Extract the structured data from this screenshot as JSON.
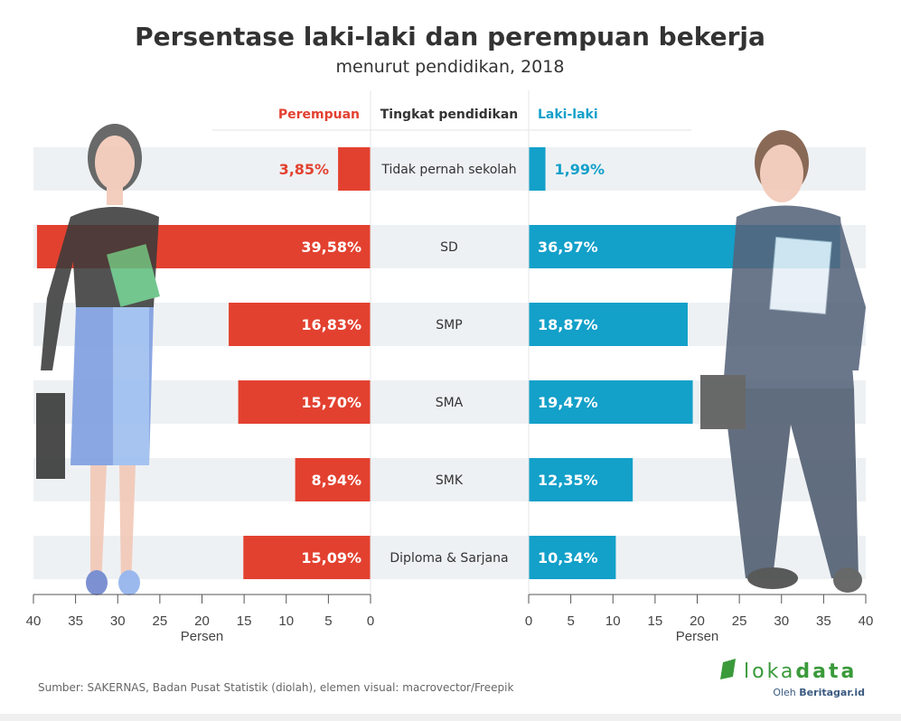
{
  "chart_data": {
    "type": "bar",
    "title": "Persentase laki-laki dan perempuan bekerja",
    "subtitle": "menurut pendidikan, 2018",
    "category_header": "Tingkat pendidikan",
    "categories": [
      "Tidak pernah sekolah",
      "SD",
      "SMP",
      "SMA",
      "SMK",
      "Diploma & Sarjana"
    ],
    "series": [
      {
        "name": "Perempuan",
        "color": "#e34130",
        "values": [
          3.85,
          39.58,
          16.83,
          15.7,
          8.94,
          15.09
        ],
        "labels": [
          "3,85%",
          "39,58%",
          "16,83%",
          "15,70%",
          "8,94%",
          "15,09%"
        ]
      },
      {
        "name": "Laki-laki",
        "color": "#13a0c9",
        "values": [
          1.99,
          36.97,
          18.87,
          19.47,
          12.35,
          10.34
        ],
        "labels": [
          "1,99%",
          "36,97%",
          "18,87%",
          "19,47%",
          "12,35%",
          "10,34%"
        ]
      }
    ],
    "xlabel": "Persen",
    "xlim": [
      0,
      40
    ],
    "ticks": [
      "0",
      "5",
      "10",
      "15",
      "20",
      "25",
      "30",
      "35",
      "40"
    ],
    "grid": false
  },
  "source": "Sumber: SAKERNAS, Badan Pusat Statistik (diolah), elemen visual: macrovector/Freepik",
  "logo": {
    "text_light": "loka",
    "text_bold": "data",
    "byline_prefix": "Oleh",
    "byline_brand": "Beritagar.id"
  }
}
